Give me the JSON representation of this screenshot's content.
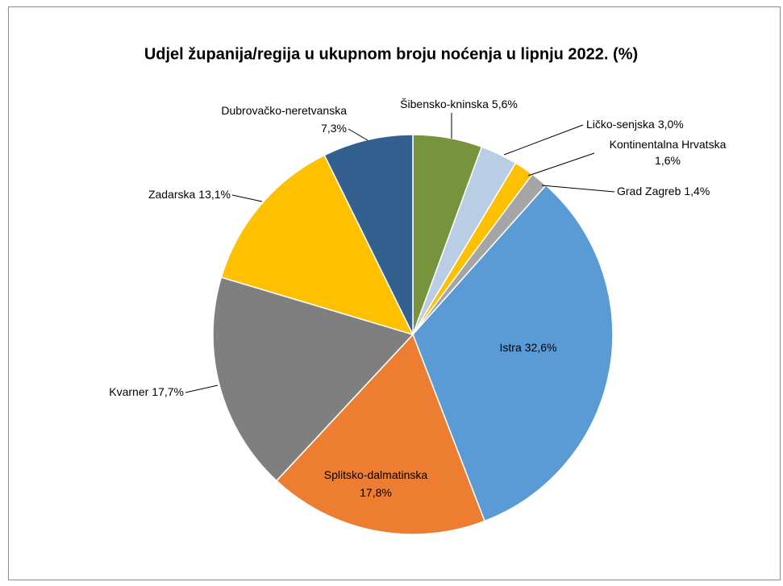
{
  "chart_data": {
    "type": "pie",
    "title": "Udjel županija/regija u ukupnom broju noćenja u lipnju 2022. (%)",
    "categories": [
      "Šibensko-kninska",
      "Ličko-senjska",
      "Kontinentalna Hrvatska",
      "Grad Zagreb",
      "Istra",
      "Splitsko-dalmatinska",
      "Kvarner",
      "Zadarska",
      "Dubrovačko-neretvanska"
    ],
    "values": [
      5.6,
      3.0,
      1.6,
      1.4,
      32.6,
      17.8,
      17.7,
      13.1,
      7.3
    ],
    "value_labels": [
      "5,6%",
      "3,0%",
      "1,6%",
      "1,4%",
      "32,6%",
      "17,8%",
      "17,7%",
      "13,1%",
      "7,3%"
    ],
    "colors": [
      "#77933c",
      "#b9cde5",
      "#ffc000",
      "#a5a5a5",
      "#5b9bd5",
      "#ed7d31",
      "#7f7f7f",
      "#ffc000",
      "#34608f"
    ]
  }
}
